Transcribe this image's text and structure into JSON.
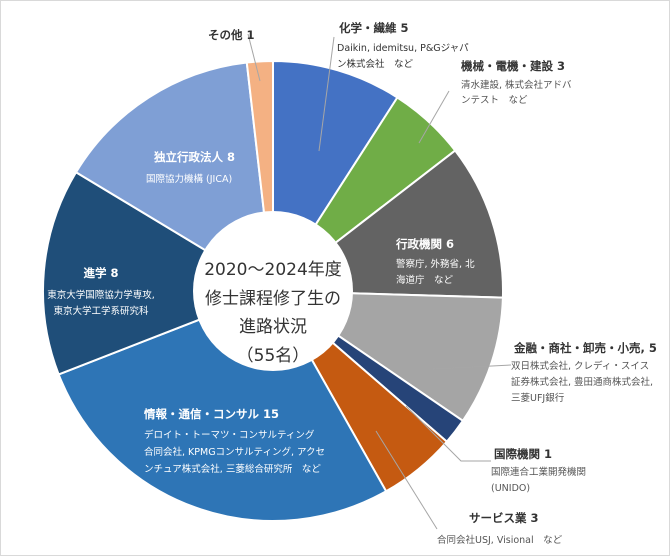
{
  "chart_data": {
    "type": "pie",
    "title": "2020～2024年度\n修士課程修了生の\n進路状況\n（55名）",
    "title_lines": [
      "2020～2024年度",
      "修士課程修了生の",
      "進路状況",
      "（55名）"
    ],
    "total": 55,
    "slices": [
      {
        "name": "化学・繊維",
        "value": 5,
        "color": "#4472c4",
        "desc": [
          "Daikin, idemitsu, P&Gジャパ",
          "ン株式会社　など"
        ]
      },
      {
        "name": "機械・電機・建設",
        "value": 3,
        "color": "#70ad47",
        "desc": [
          "清水建設, 株式会社アドバ",
          "ンテスト　など"
        ]
      },
      {
        "name": "行政機関",
        "value": 6,
        "color": "#636363",
        "desc": [
          "警察庁, 外務省, 北",
          "海道庁　など"
        ]
      },
      {
        "name": "金融・商社・卸売・小売,",
        "value": 5,
        "color": "#a5a5a5",
        "desc": [
          "双日株式会社, クレディ・スイス",
          "証券株式会社, 豊田通商株式会社,",
          "三菱UFJ銀行"
        ]
      },
      {
        "name": "国際機関",
        "value": 1,
        "color": "#264478",
        "desc": [
          "国際連合工業開発機関",
          "(UNIDO)"
        ]
      },
      {
        "name": "サービス業",
        "value": 3,
        "color": "#c55a11",
        "desc": [
          "合同会社USJ, Visional　など"
        ]
      },
      {
        "name": "情報・通信・コンサル",
        "value": 15,
        "color": "#2e75b6",
        "desc": [
          "デロイト・トーマツ・コンサルティング",
          "合同会社, KPMGコンサルティング, アクセ",
          "ンチュア株式会社, 三菱総合研究所　など"
        ]
      },
      {
        "name": "進学",
        "value": 8,
        "color": "#1f4e79",
        "desc": [
          "東京大学国際協力学専攻,",
          "東京大学工学系研究科"
        ]
      },
      {
        "name": "独立行政法人",
        "value": 8,
        "color": "#7f9fd5",
        "desc": [
          "国際協力機構 (JICA)"
        ]
      },
      {
        "name": "その他",
        "value": 1,
        "color": "#f4b183",
        "desc": []
      }
    ]
  }
}
